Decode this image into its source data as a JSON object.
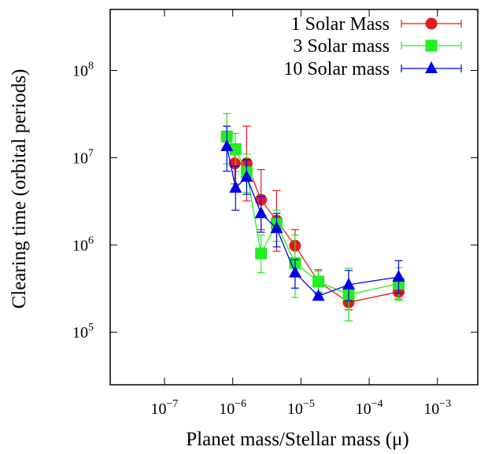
{
  "chart_data": {
    "type": "scatter",
    "xlabel": "Planet mass/Stellar mass (μ)",
    "ylabel": "Clearing time (orbital periods)",
    "x_scale": "log",
    "y_scale": "log",
    "xlim": [
      1.6e-08,
      0.0039
    ],
    "ylim": [
      25000.0,
      500000000.0
    ],
    "x_ticks": [
      {
        "value": 1e-07,
        "base": "10",
        "exp": "−7"
      },
      {
        "value": 1e-06,
        "base": "10",
        "exp": "−6"
      },
      {
        "value": 1e-05,
        "base": "10",
        "exp": "−5"
      },
      {
        "value": 0.0001,
        "base": "10",
        "exp": "−4"
      },
      {
        "value": 0.001,
        "base": "10",
        "exp": "−3"
      }
    ],
    "y_ticks": [
      {
        "value": 100000.0,
        "base": "10",
        "exp": "5"
      },
      {
        "value": 1000000.0,
        "base": "10",
        "exp": "6"
      },
      {
        "value": 10000000.0,
        "base": "10",
        "exp": "7"
      },
      {
        "value": 100000000.0,
        "base": "10",
        "exp": "8"
      }
    ],
    "grid": false,
    "legend_position": "top-right",
    "series": [
      {
        "name": "1 Solar Mass",
        "color": "#e41a1c",
        "marker": "circle",
        "points": [
          {
            "x": 1.07e-06,
            "y": 8600000.0,
            "ylo": 5000000.0,
            "yhi": 14000000.0
          },
          {
            "x": 1.6e-06,
            "y": 8600000.0,
            "ylo": 3200000.0,
            "yhi": 23000000.0
          },
          {
            "x": 2.6e-06,
            "y": 3300000.0,
            "ylo": 1500000.0,
            "yhi": 7300000.0
          },
          {
            "x": 4.4e-06,
            "y": 1900000.0,
            "ylo": 850000.0,
            "yhi": 4200000.0
          },
          {
            "x": 8.2e-06,
            "y": 980000.0,
            "ylo": 600000.0,
            "yhi": 1500000.0
          },
          {
            "x": 1.8e-05,
            "y": 380000.0,
            "ylo": 270000.0,
            "yhi": 520000.0
          },
          {
            "x": 5e-05,
            "y": 220000.0,
            "ylo": 180000.0,
            "yhi": 290000.0
          },
          {
            "x": 0.00027,
            "y": 290000.0,
            "ylo": 240000.0,
            "yhi": 350000.0
          }
        ]
      },
      {
        "name": "3 Solar mass",
        "color": "#22ee22",
        "marker": "square",
        "points": [
          {
            "x": 8.2e-07,
            "y": 17500000.0,
            "ylo": 8500000.0,
            "yhi": 32000000.0
          },
          {
            "x": 1.1e-06,
            "y": 12500000.0,
            "ylo": 7000000.0,
            "yhi": 19000000.0
          },
          {
            "x": 1.6e-06,
            "y": 6800000.0,
            "ylo": 4000000.0,
            "yhi": 11000000.0
          },
          {
            "x": 2.6e-06,
            "y": 800000.0,
            "ylo": 480000.0,
            "yhi": 1300000.0
          },
          {
            "x": 4.4e-06,
            "y": 1750000.0,
            "ylo": 1100000.0,
            "yhi": 2500000.0
          },
          {
            "x": 8.2e-06,
            "y": 620000.0,
            "ylo": 250000.0,
            "yhi": 1300000.0
          },
          {
            "x": 1.8e-05,
            "y": 380000.0,
            "ylo": 290000.0,
            "yhi": 500000.0
          },
          {
            "x": 5e-05,
            "y": 270000.0,
            "ylo": 135000.0,
            "yhi": 540000.0
          },
          {
            "x": 0.00027,
            "y": 360000.0,
            "ylo": 230000.0,
            "yhi": 550000.0
          }
        ]
      },
      {
        "name": "10 Solar mass",
        "color": "#0000ee",
        "marker": "triangle",
        "points": [
          {
            "x": 8.2e-07,
            "y": 13500000.0,
            "ylo": 7000000.0,
            "yhi": 23000000.0
          },
          {
            "x": 1.1e-06,
            "y": 4500000.0,
            "ylo": 2500000.0,
            "yhi": 8000000.0
          },
          {
            "x": 1.6e-06,
            "y": 6000000.0,
            "ylo": 3800000.0,
            "yhi": 9500000.0
          },
          {
            "x": 2.6e-06,
            "y": 2300000.0,
            "ylo": 1400000.0,
            "yhi": 3600000.0
          },
          {
            "x": 4.4e-06,
            "y": 1550000.0,
            "ylo": 950000.0,
            "yhi": 2300000.0
          },
          {
            "x": 8.2e-06,
            "y": 480000.0,
            "ylo": 320000.0,
            "yhi": 680000.0
          },
          {
            "x": 1.8e-05,
            "y": 260000.0,
            "ylo": 240000.0,
            "yhi": 280000.0
          },
          {
            "x": 5e-05,
            "y": 350000.0,
            "ylo": 230000.0,
            "yhi": 510000.0
          },
          {
            "x": 0.00027,
            "y": 430000.0,
            "ylo": 280000.0,
            "yhi": 660000.0
          }
        ]
      }
    ]
  }
}
